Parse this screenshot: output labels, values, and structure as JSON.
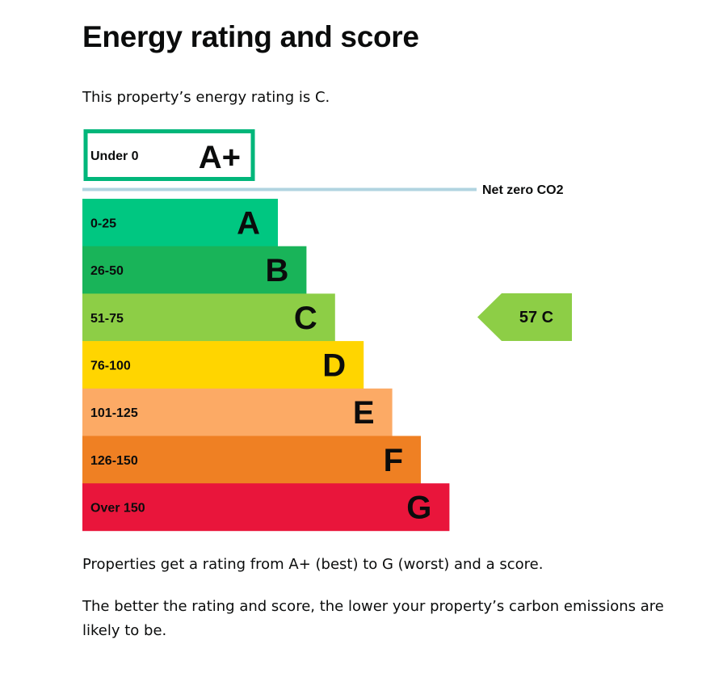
{
  "page": {
    "title": "Energy rating and score",
    "intro": "This property’s energy rating is C.",
    "footer_1": "Properties get a rating from A+ (best) to G (worst) and a score.",
    "footer_2": "The better the rating and score, the lower your property’s carbon emissions are likely to be."
  },
  "chart_data": {
    "type": "bar",
    "title": "",
    "xlabel": "",
    "ylabel": "",
    "top_band": {
      "range": "Under 0",
      "letter": "A+",
      "border_color": "#00b67a"
    },
    "net_zero_label": "Net zero CO2",
    "net_zero_color": "#b1d4e0",
    "bands": [
      {
        "range": "0-25",
        "letter": "A",
        "color": "#00c781"
      },
      {
        "range": "26-50",
        "letter": "B",
        "color": "#19b459"
      },
      {
        "range": "51-75",
        "letter": "C",
        "color": "#8dce46"
      },
      {
        "range": "76-100",
        "letter": "D",
        "color": "#ffd500"
      },
      {
        "range": "101-125",
        "letter": "E",
        "color": "#fcaa65"
      },
      {
        "range": "126-150",
        "letter": "F",
        "color": "#ef8023"
      },
      {
        "range": "Over 150",
        "letter": "G",
        "color": "#e9153b"
      }
    ],
    "current": {
      "score": "57",
      "letter": "C",
      "color": "#8dce46"
    }
  }
}
